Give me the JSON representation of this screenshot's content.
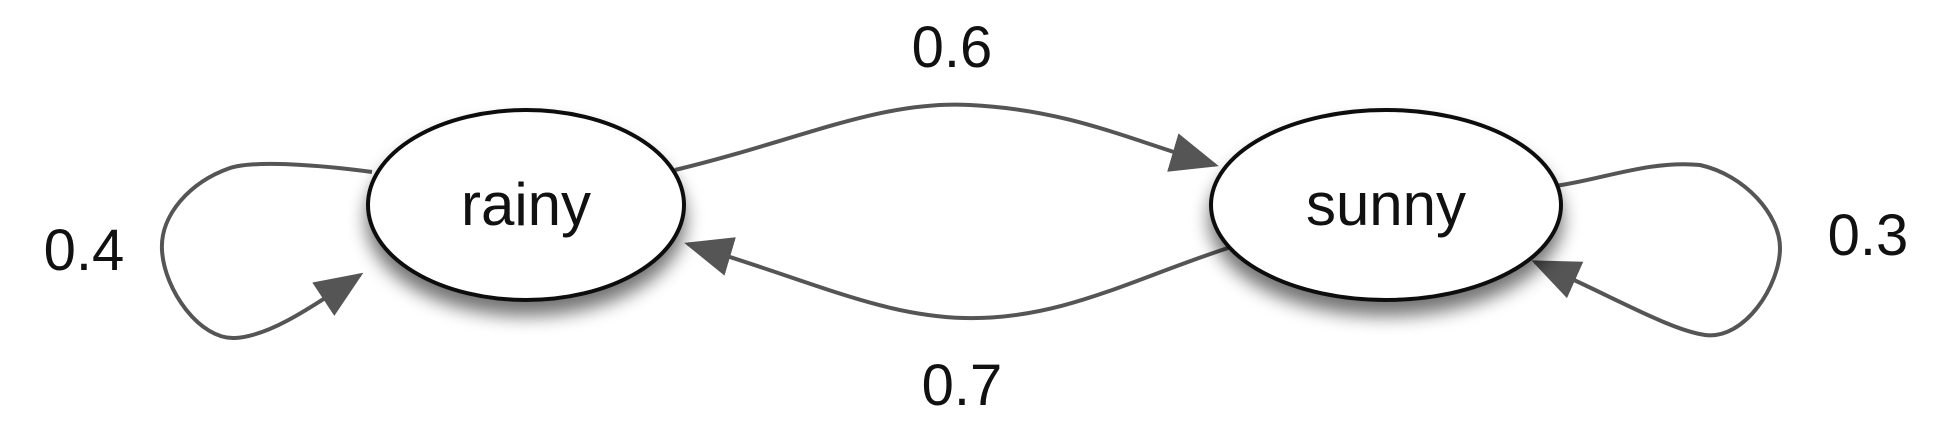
{
  "colors": {
    "background": "#ffffff",
    "node_fill": "#ffffff",
    "node_stroke": "#111111",
    "edge": "#555555",
    "text": "#111111"
  },
  "nodes": {
    "rainy": {
      "label": "rainy"
    },
    "sunny": {
      "label": "sunny"
    }
  },
  "edges": {
    "rainy_to_sunny": {
      "label": "0.6"
    },
    "sunny_to_rainy": {
      "label": "0.7"
    },
    "rainy_to_rainy": {
      "label": "0.4"
    },
    "sunny_to_sunny": {
      "label": "0.3"
    }
  }
}
